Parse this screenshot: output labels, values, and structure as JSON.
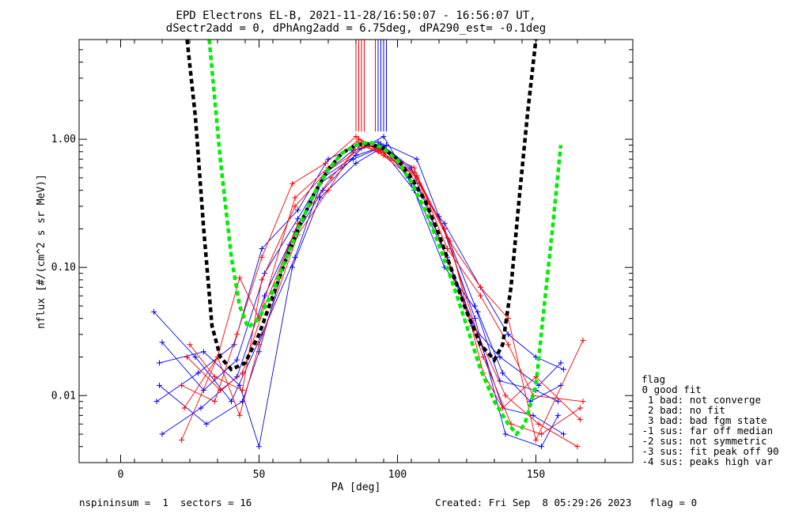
{
  "chart_data": {
    "type": "scatter",
    "title": "EPD Electrons EL-B, 2021-11-28/16:50:07 - 16:56:07 UT,",
    "subtitle": "dSectr2add = 0, dPhAng2add = 6.75deg, dPA290_est=  -0.1deg",
    "xlabel": "PA [deg]",
    "ylabel": "nflux [#/(cm^2 s sr MeV)]",
    "xlim": [
      -15,
      185
    ],
    "ylim": [
      0.003,
      6
    ],
    "yscale": "log",
    "xticks": [
      0,
      50,
      100,
      150
    ],
    "xtick_labels": [
      "0",
      "50",
      "100",
      "150"
    ],
    "yticks": [
      0.01,
      0.1,
      1.0
    ],
    "ytick_labels": [
      "0.01",
      "0.10",
      "1.00"
    ],
    "series": [
      {
        "color": "#0000ff",
        "style": "thin lines with + markers",
        "spectra": [
          {
            "x": [
              15,
              30,
              42,
              52,
              64,
              74,
              84,
              94,
              106,
              117,
              128,
              137,
              150,
              158
            ],
            "y": [
              0.026,
              0.011,
              0.019,
              0.09,
              0.24,
              0.55,
              0.82,
              0.92,
              0.55,
              0.2,
              0.05,
              0.013,
              0.011,
              0.009
            ]
          },
          {
            "x": [
              12,
              27,
              40,
              51,
              63,
              73,
              85,
              95,
              105,
              116,
              129,
              138,
              149,
              160
            ],
            "y": [
              0.045,
              0.02,
              0.009,
              0.03,
              0.12,
              0.5,
              0.75,
              0.88,
              0.6,
              0.15,
              0.03,
              0.008,
              0.007,
              0.005
            ]
          },
          {
            "x": [
              14,
              30,
              43,
              50,
              62,
              72,
              85,
              94,
              106,
              118,
              127,
              137,
              151,
              159
            ],
            "y": [
              0.018,
              0.022,
              0.012,
              0.004,
              0.1,
              0.35,
              0.65,
              0.85,
              0.4,
              0.12,
              0.035,
              0.02,
              0.012,
              0.018
            ]
          },
          {
            "x": [
              13,
              28,
              41,
              51,
              64,
              75,
              86,
              93,
              104,
              117,
              130,
              140,
              150,
              160
            ],
            "y": [
              0.009,
              0.015,
              0.025,
              0.14,
              0.28,
              0.7,
              0.9,
              0.95,
              0.5,
              0.22,
              0.07,
              0.03,
              0.02,
              0.016
            ]
          },
          {
            "x": [
              15,
              29,
              42,
              52,
              63,
              72,
              84,
              96,
              107,
              115,
              128,
              139,
              152,
              158
            ],
            "y": [
              0.005,
              0.008,
              0.014,
              0.06,
              0.19,
              0.45,
              0.7,
              0.9,
              0.7,
              0.25,
              0.04,
              0.005,
              0.004,
              0.007
            ]
          },
          {
            "x": [
              14,
              31,
              44,
              50,
              61,
              73,
              87,
              95,
              105,
              117,
              129,
              138,
              148,
              159
            ],
            "y": [
              0.012,
              0.006,
              0.009,
              0.022,
              0.15,
              0.4,
              0.85,
              1.05,
              0.45,
              0.1,
              0.045,
              0.015,
              0.009,
              0.012
            ]
          }
        ]
      },
      {
        "color": "#ff0000",
        "style": "thin lines with + markers",
        "spectra": [
          {
            "x": [
              22,
              35,
              43,
              50,
              63,
              75,
              86,
              92,
              106,
              118,
              130,
              140,
              150,
              167
            ],
            "y": [
              0.0045,
              0.02,
              0.083,
              0.04,
              0.35,
              0.6,
              1.0,
              0.85,
              0.55,
              0.17,
              0.07,
              0.04,
              0.0045,
              0.027
            ]
          },
          {
            "x": [
              24,
              36,
              44,
              52,
              64,
              76,
              87,
              93,
              108,
              119,
              131,
              141,
              152,
              166
            ],
            "y": [
              0.02,
              0.011,
              0.015,
              0.05,
              0.22,
              0.5,
              0.92,
              0.8,
              0.45,
              0.1,
              0.02,
              0.006,
              0.005,
              0.008
            ]
          },
          {
            "x": [
              22,
              34,
              42,
              51,
              62,
              74,
              85,
              95,
              107,
              117,
              129,
              139,
              151,
              165
            ],
            "y": [
              0.012,
              0.009,
              0.03,
              0.12,
              0.45,
              0.65,
              1.05,
              0.78,
              0.5,
              0.2,
              0.03,
              0.01,
              0.006,
              0.004
            ]
          },
          {
            "x": [
              23,
              35,
              43,
              50,
              64,
              75,
              86,
              94,
              106,
              118,
              130,
              140,
              149,
              167
            ],
            "y": [
              0.008,
              0.02,
              0.007,
              0.025,
              0.18,
              0.4,
              0.95,
              0.82,
              0.6,
              0.14,
              0.06,
              0.025,
              0.01,
              0.009
            ]
          },
          {
            "x": [
              25,
              34,
              44,
              51,
              63,
              74,
              88,
              95,
              107,
              119,
              131,
              138,
              150,
              166
            ],
            "y": [
              0.025,
              0.014,
              0.011,
              0.08,
              0.3,
              0.55,
              0.88,
              0.75,
              0.52,
              0.16,
              0.015,
              0.008,
              0.014,
              0.0065
            ]
          }
        ]
      },
      {
        "name": "",
        "color": "#000000",
        "style": "thick dashed",
        "x": [
          24,
          27,
          30,
          33,
          36,
          40,
          45,
          50,
          55,
          60,
          65,
          70,
          75,
          80,
          85,
          90,
          95,
          100,
          105,
          110,
          115,
          120,
          125,
          130,
          135,
          138,
          141,
          144,
          147,
          150
        ],
        "y": [
          6,
          1.5,
          0.2,
          0.035,
          0.02,
          0.016,
          0.018,
          0.03,
          0.06,
          0.12,
          0.22,
          0.38,
          0.58,
          0.78,
          0.9,
          0.92,
          0.85,
          0.7,
          0.5,
          0.33,
          0.18,
          0.09,
          0.045,
          0.025,
          0.019,
          0.025,
          0.07,
          0.35,
          1.6,
          6
        ]
      },
      {
        "name": "",
        "color": "#00ee00",
        "style": "thick dashed",
        "x": [
          32,
          36,
          40,
          43,
          46,
          50,
          55,
          60,
          65,
          70,
          75,
          80,
          85,
          90,
          95,
          100,
          105,
          110,
          115,
          120,
          125,
          130,
          135,
          140,
          143,
          146,
          150,
          153,
          156,
          159
        ],
        "y": [
          6,
          0.7,
          0.12,
          0.05,
          0.034,
          0.04,
          0.065,
          0.12,
          0.22,
          0.38,
          0.58,
          0.78,
          0.9,
          0.95,
          0.85,
          0.68,
          0.46,
          0.28,
          0.15,
          0.075,
          0.035,
          0.016,
          0.009,
          0.006,
          0.005,
          0.006,
          0.012,
          0.05,
          0.2,
          0.9
        ]
      }
    ],
    "legend": {
      "placement": "right",
      "title": "flag",
      "entries": [
        " 0 good fit",
        "  1 bad: not converge",
        "  2 bad: no fit",
        "  3 bad: bad fgm state",
        " -1 sus: far off median",
        " -2 sus: not symmetric",
        " -3 sus: fit peak off 90",
        " -4 sus: peaks high var"
      ]
    }
  },
  "footer": {
    "left": "nspininsum =  1  sectors = 16",
    "right": "Created: Fri Sep  8 05:29:26 2023   flag = 0"
  }
}
